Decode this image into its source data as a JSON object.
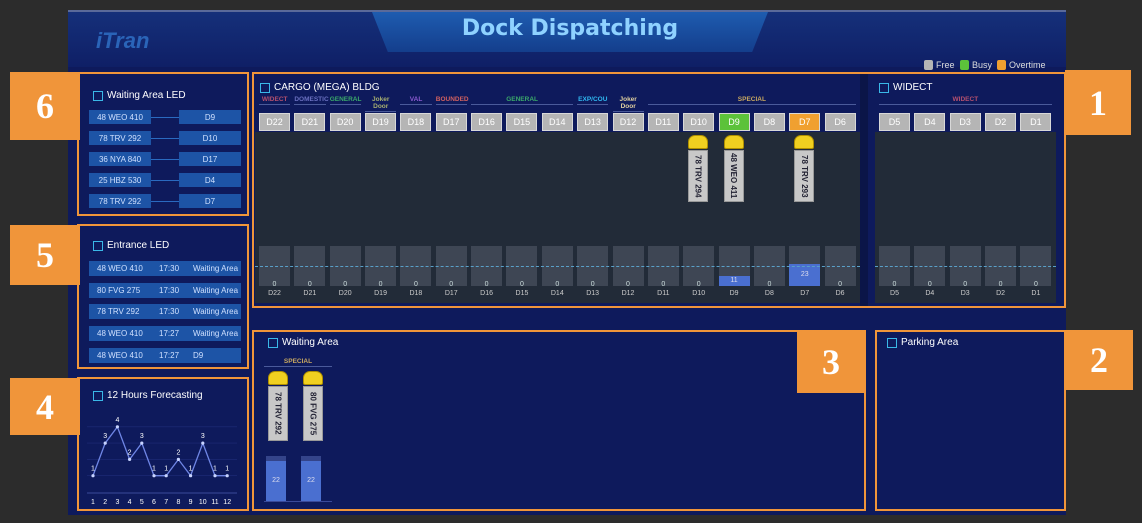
{
  "header": {
    "logo": "iTran",
    "title": "Dock Dispatching",
    "legend": [
      {
        "label": "Free",
        "color": "#b5b5b5"
      },
      {
        "label": "Busy",
        "color": "#5cc23a"
      },
      {
        "label": "Overtime",
        "color": "#f0a030"
      }
    ]
  },
  "badges": [
    "1",
    "2",
    "3",
    "4",
    "5",
    "6"
  ],
  "waiting_led": {
    "title": "Waiting Area LED",
    "rows": [
      {
        "plate": "48 WEO 410",
        "dock": "D9"
      },
      {
        "plate": "78 TRV 292",
        "dock": "D10"
      },
      {
        "plate": "36 NYA 840",
        "dock": "D17"
      },
      {
        "plate": "25 HBZ 530",
        "dock": "D4"
      },
      {
        "plate": "78 TRV 292",
        "dock": "D7"
      }
    ]
  },
  "entrance_led": {
    "title": "Entrance LED",
    "rows": [
      {
        "plate": "48 WEO 410",
        "time": "17:30",
        "dest": "Waiting Area"
      },
      {
        "plate": "80 FVG 275",
        "time": "17:30",
        "dest": "Waiting Area"
      },
      {
        "plate": "78 TRV 292",
        "time": "17:30",
        "dest": "Waiting Area"
      },
      {
        "plate": "48 WEO 410",
        "time": "17:27",
        "dest": "Waiting Area"
      },
      {
        "plate": "48 WEO 410",
        "time": "17:27",
        "dest": "D9"
      }
    ]
  },
  "forecast": {
    "title": "12 Hours Forecasting",
    "chart_data": {
      "type": "line",
      "x": [
        1,
        2,
        3,
        4,
        5,
        6,
        7,
        8,
        9,
        10,
        11,
        12
      ],
      "values": [
        1,
        3,
        4,
        2,
        3,
        1,
        1,
        2,
        1,
        3,
        1,
        1
      ],
      "ylim": [
        0,
        5
      ],
      "grid": true
    }
  },
  "cargo": {
    "title": "CARGO (MEGA) BLDG",
    "categories": [
      {
        "label": "WIDECT",
        "span": 1,
        "color": "#b4506e"
      },
      {
        "label": "DOMESTIC",
        "span": 1,
        "color": "#6a70c0"
      },
      {
        "label": "GENERAL",
        "span": 1,
        "color": "#3aa86a"
      },
      {
        "label": "Joker Door",
        "span": 1,
        "color": "#a8b070"
      },
      {
        "label": "VAL",
        "span": 1,
        "color": "#8a5ad0"
      },
      {
        "label": "BOUNDED",
        "span": 1,
        "color": "#d06060"
      },
      {
        "label": "GENERAL",
        "span": 3,
        "color": "#3aa86a"
      },
      {
        "label": "EXP/COU",
        "span": 1,
        "color": "#30b8f0"
      },
      {
        "label": "Joker Door",
        "span": 1,
        "color": "#e0d0a0"
      },
      {
        "label": "SPECIAL",
        "span": 6,
        "color": "#c8a860"
      }
    ],
    "docks": [
      {
        "id": "D22",
        "status": "free",
        "value": 0
      },
      {
        "id": "D21",
        "status": "free",
        "value": 0
      },
      {
        "id": "D20",
        "status": "free",
        "value": 0
      },
      {
        "id": "D19",
        "status": "free",
        "value": 0
      },
      {
        "id": "D18",
        "status": "free",
        "value": 0
      },
      {
        "id": "D17",
        "status": "free",
        "value": 0
      },
      {
        "id": "D16",
        "status": "free",
        "value": 0
      },
      {
        "id": "D15",
        "status": "free",
        "value": 0
      },
      {
        "id": "D14",
        "status": "free",
        "value": 0
      },
      {
        "id": "D13",
        "status": "free",
        "value": 0
      },
      {
        "id": "D12",
        "status": "free",
        "value": 0
      },
      {
        "id": "D11",
        "status": "free",
        "value": 0
      },
      {
        "id": "D10",
        "status": "free",
        "value": 0,
        "truck": "78 TRV 294"
      },
      {
        "id": "D9",
        "status": "busy",
        "value": 11,
        "truck": "48 WEO 411"
      },
      {
        "id": "D8",
        "status": "free",
        "value": 0
      },
      {
        "id": "D7",
        "status": "overtime",
        "value": 23,
        "truck": "78 TRV 293"
      },
      {
        "id": "D6",
        "status": "free",
        "value": 0
      }
    ]
  },
  "widect": {
    "title": "WIDECT",
    "categories": [
      {
        "label": "WIDECT",
        "span": 5,
        "color": "#b4506e"
      }
    ],
    "docks": [
      {
        "id": "D5",
        "status": "free",
        "value": 0
      },
      {
        "id": "D4",
        "status": "free",
        "value": 0
      },
      {
        "id": "D3",
        "status": "free",
        "value": 0
      },
      {
        "id": "D2",
        "status": "free",
        "value": 0
      },
      {
        "id": "D1",
        "status": "free",
        "value": 0
      }
    ]
  },
  "waiting_area": {
    "title": "Waiting Area",
    "category": "SPECIAL",
    "trucks": [
      {
        "plate": "78 TRV 292",
        "value": 22
      },
      {
        "plate": "80 FVG 275",
        "value": 22
      }
    ]
  },
  "parking_area": {
    "title": "Parking Area"
  }
}
